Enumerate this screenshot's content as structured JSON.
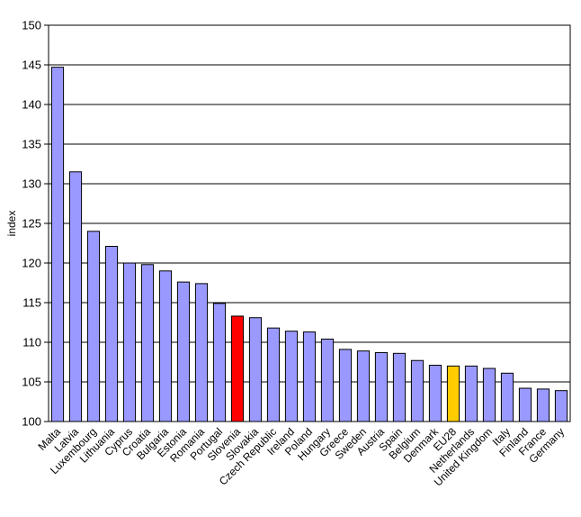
{
  "chart_data": {
    "type": "bar",
    "title": "",
    "xlabel": "",
    "ylabel": "index",
    "ylim": [
      100,
      150
    ],
    "yticks": [
      100,
      105,
      110,
      115,
      120,
      125,
      130,
      135,
      140,
      145,
      150
    ],
    "grid": true,
    "categories": [
      "Malta",
      "Latvia",
      "Luxembourg",
      "Lithuania",
      "Cyprus",
      "Croatia",
      "Bulgaria",
      "Estonia",
      "Romania",
      "Portugal",
      "Slovenia",
      "Slovakia",
      "Czech Republic",
      "Ireland",
      "Poland",
      "Hungary",
      "Greece",
      "Sweden",
      "Austria",
      "Spain",
      "Belgium",
      "Denmark",
      "EU28",
      "Netherlands",
      "United Kingdom",
      "Italy",
      "Finland",
      "France",
      "Germany"
    ],
    "values": [
      144.7,
      131.5,
      124.0,
      122.1,
      120.0,
      119.8,
      119.0,
      117.6,
      117.4,
      114.9,
      113.3,
      113.1,
      111.8,
      111.4,
      111.3,
      110.4,
      109.1,
      108.9,
      108.7,
      108.6,
      107.7,
      107.1,
      107.0,
      107.0,
      106.7,
      106.1,
      104.2,
      104.1,
      103.9
    ],
    "colors": {
      "default": "#9999ff",
      "Slovenia": "#ff0000",
      "EU28": "#ffcc00",
      "gridline": "#000000",
      "bar_stroke": "#000000"
    }
  }
}
